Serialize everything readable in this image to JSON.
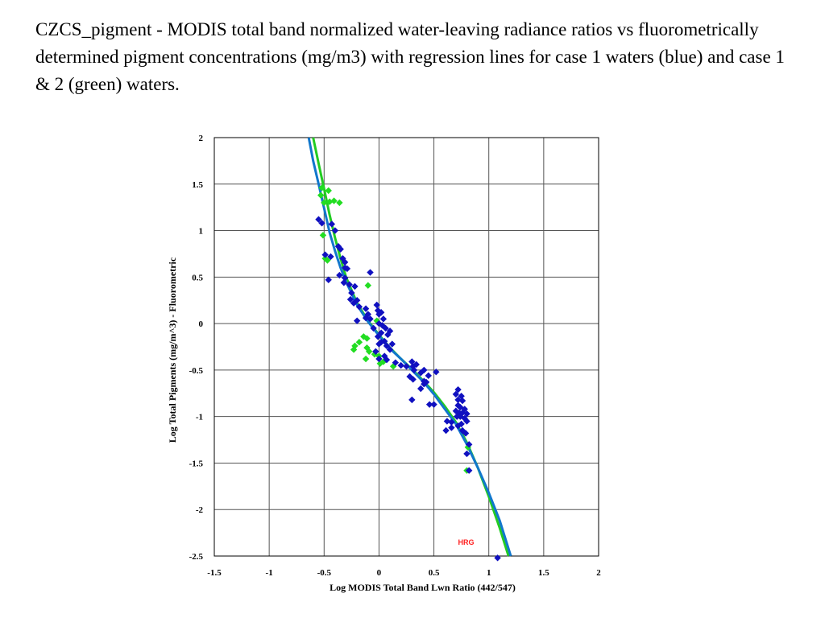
{
  "caption": "CZCS_pigment - MODIS total band normalized water-leaving radiance ratios vs fluorometrically determined pigment concentrations (mg/m3) with regression lines for case 1 waters (blue) and case 1 & 2 (green) waters.",
  "chart_data": {
    "type": "scatter",
    "xlabel": "Log MODIS Total Band Lwn Ratio (442/547)",
    "ylabel": "Log Total Pigments (mg/m^3) - Fluorometric",
    "xlim": [
      -1.5,
      2
    ],
    "ylim": [
      -2.5,
      2
    ],
    "x_ticks": [
      -1.5,
      -1,
      -0.5,
      0,
      0.5,
      1,
      1.5,
      2
    ],
    "y_ticks": [
      -2.5,
      -2,
      -1.5,
      -1,
      -0.5,
      0,
      0.5,
      1,
      1.5,
      2
    ],
    "x_tick_labels": [
      "-1.5",
      "-1",
      "-0.5",
      "0",
      "0.5",
      "1",
      "1.5",
      "2"
    ],
    "y_tick_labels": [
      "-2.5",
      "-2",
      "-1.5",
      "-1",
      "-0.5",
      "0",
      "0.5",
      "1",
      "1.5",
      "2"
    ],
    "grid": true,
    "annotation": "HRG",
    "colors": {
      "case12": "#22dd22",
      "case1": "#1010c0",
      "blue_line": "#1177cc",
      "green_line": "#22cc22"
    },
    "series_green": [
      [
        -0.52,
        1.46
      ],
      [
        -0.46,
        1.43
      ],
      [
        -0.53,
        1.38
      ],
      [
        -0.5,
        1.3
      ],
      [
        -0.45,
        1.31
      ],
      [
        -0.41,
        1.32
      ],
      [
        -0.36,
        1.3
      ],
      [
        -0.51,
        0.95
      ],
      [
        -0.49,
        0.7
      ],
      [
        -0.47,
        0.68
      ],
      [
        -0.1,
        0.41
      ],
      [
        -0.02,
        0.03
      ],
      [
        -0.14,
        -0.14
      ],
      [
        -0.11,
        -0.16
      ],
      [
        -0.18,
        -0.2
      ],
      [
        -0.22,
        -0.24
      ],
      [
        -0.23,
        -0.28
      ],
      [
        -0.11,
        -0.26
      ],
      [
        -0.09,
        -0.3
      ],
      [
        -0.12,
        -0.38
      ],
      [
        -0.04,
        -0.33
      ],
      [
        0.0,
        -0.35
      ],
      [
        0.01,
        -0.43
      ],
      [
        0.04,
        -0.41
      ],
      [
        0.13,
        -0.46
      ],
      [
        0.8,
        -1.58
      ],
      [
        0.81,
        -1.33
      ]
    ],
    "series_blue": [
      [
        -0.55,
        1.12
      ],
      [
        -0.52,
        1.08
      ],
      [
        -0.43,
        1.07
      ],
      [
        -0.4,
        1.0
      ],
      [
        -0.37,
        0.83
      ],
      [
        -0.35,
        0.8
      ],
      [
        -0.49,
        0.74
      ],
      [
        -0.44,
        0.72
      ],
      [
        -0.33,
        0.7
      ],
      [
        -0.31,
        0.66
      ],
      [
        -0.31,
        0.6
      ],
      [
        -0.29,
        0.59
      ],
      [
        -0.36,
        0.52
      ],
      [
        -0.31,
        0.49
      ],
      [
        -0.46,
        0.47
      ],
      [
        -0.32,
        0.44
      ],
      [
        -0.27,
        0.42
      ],
      [
        -0.08,
        0.55
      ],
      [
        -0.22,
        0.4
      ],
      [
        -0.25,
        0.33
      ],
      [
        -0.26,
        0.26
      ],
      [
        -0.2,
        0.25
      ],
      [
        -0.23,
        0.22
      ],
      [
        -0.18,
        0.18
      ],
      [
        -0.12,
        0.16
      ],
      [
        -0.1,
        0.1
      ],
      [
        -0.12,
        0.06
      ],
      [
        -0.08,
        0.05
      ],
      [
        -0.2,
        0.03
      ],
      [
        -0.02,
        0.2
      ],
      [
        -0.01,
        0.14
      ],
      [
        0.0,
        0.1
      ],
      [
        0.02,
        0.12
      ],
      [
        0.04,
        0.05
      ],
      [
        0.0,
        0.0
      ],
      [
        0.03,
        -0.02
      ],
      [
        -0.05,
        -0.05
      ],
      [
        0.06,
        -0.05
      ],
      [
        0.1,
        -0.08
      ],
      [
        0.02,
        -0.1
      ],
      [
        0.08,
        -0.12
      ],
      [
        -0.01,
        -0.14
      ],
      [
        0.05,
        -0.19
      ],
      [
        0.02,
        -0.2
      ],
      [
        0.0,
        -0.22
      ],
      [
        0.07,
        -0.24
      ],
      [
        0.1,
        -0.28
      ],
      [
        0.12,
        -0.22
      ],
      [
        -0.03,
        -0.3
      ],
      [
        0.05,
        -0.35
      ],
      [
        0.0,
        -0.38
      ],
      [
        0.07,
        -0.39
      ],
      [
        0.15,
        -0.42
      ],
      [
        0.2,
        -0.45
      ],
      [
        0.25,
        -0.46
      ],
      [
        0.3,
        -0.41
      ],
      [
        0.31,
        -0.46
      ],
      [
        0.34,
        -0.44
      ],
      [
        0.32,
        -0.5
      ],
      [
        0.38,
        -0.53
      ],
      [
        0.41,
        -0.5
      ],
      [
        0.45,
        -0.56
      ],
      [
        0.28,
        -0.57
      ],
      [
        0.31,
        -0.6
      ],
      [
        0.41,
        -0.62
      ],
      [
        0.43,
        -0.63
      ],
      [
        0.41,
        -0.65
      ],
      [
        0.38,
        -0.7
      ],
      [
        0.3,
        -0.82
      ],
      [
        0.52,
        -0.52
      ],
      [
        0.46,
        -0.87
      ],
      [
        0.5,
        -0.87
      ],
      [
        0.72,
        -0.71
      ],
      [
        0.7,
        -0.76
      ],
      [
        0.75,
        -0.78
      ],
      [
        0.72,
        -0.82
      ],
      [
        0.76,
        -0.83
      ],
      [
        0.72,
        -0.88
      ],
      [
        0.74,
        -0.9
      ],
      [
        0.78,
        -0.92
      ],
      [
        0.7,
        -0.94
      ],
      [
        0.73,
        -0.96
      ],
      [
        0.76,
        -0.96
      ],
      [
        0.8,
        -0.97
      ],
      [
        0.71,
        -1.0
      ],
      [
        0.74,
        -1.0
      ],
      [
        0.78,
        -1.02
      ],
      [
        0.8,
        -1.05
      ],
      [
        0.62,
        -1.05
      ],
      [
        0.66,
        -1.06
      ],
      [
        0.75,
        -1.08
      ],
      [
        0.72,
        -1.1
      ],
      [
        0.66,
        -1.12
      ],
      [
        0.76,
        -1.15
      ],
      [
        0.61,
        -1.15
      ],
      [
        0.79,
        -1.18
      ],
      [
        0.82,
        -1.3
      ],
      [
        0.8,
        -1.4
      ],
      [
        0.82,
        -1.58
      ],
      [
        1.08,
        -2.52
      ]
    ],
    "regression_blue": [
      [
        -0.64,
        2.0
      ],
      [
        -0.6,
        1.75
      ],
      [
        -0.55,
        1.5
      ],
      [
        -0.5,
        1.24
      ],
      [
        -0.45,
        0.98
      ],
      [
        -0.4,
        0.78
      ],
      [
        -0.35,
        0.6
      ],
      [
        -0.3,
        0.45
      ],
      [
        -0.2,
        0.2
      ],
      [
        -0.1,
        0.02
      ],
      [
        0.0,
        -0.13
      ],
      [
        0.1,
        -0.27
      ],
      [
        0.2,
        -0.38
      ],
      [
        0.3,
        -0.5
      ],
      [
        0.4,
        -0.62
      ],
      [
        0.5,
        -0.76
      ],
      [
        0.6,
        -0.92
      ],
      [
        0.7,
        -1.08
      ],
      [
        0.8,
        -1.3
      ],
      [
        0.9,
        -1.55
      ],
      [
        1.0,
        -1.82
      ],
      [
        1.1,
        -2.12
      ],
      [
        1.2,
        -2.5
      ]
    ],
    "regression_green": [
      [
        -0.6,
        2.0
      ],
      [
        -0.55,
        1.72
      ],
      [
        -0.5,
        1.45
      ],
      [
        -0.45,
        1.17
      ],
      [
        -0.4,
        0.92
      ],
      [
        -0.35,
        0.7
      ],
      [
        -0.3,
        0.5
      ],
      [
        -0.2,
        0.22
      ],
      [
        -0.1,
        0.03
      ],
      [
        0.0,
        -0.12
      ],
      [
        0.1,
        -0.26
      ],
      [
        0.2,
        -0.38
      ],
      [
        0.3,
        -0.49
      ],
      [
        0.4,
        -0.61
      ],
      [
        0.5,
        -0.74
      ],
      [
        0.6,
        -0.89
      ],
      [
        0.7,
        -1.06
      ],
      [
        0.8,
        -1.28
      ],
      [
        0.9,
        -1.55
      ],
      [
        1.0,
        -1.86
      ],
      [
        1.1,
        -2.2
      ],
      [
        1.18,
        -2.5
      ]
    ]
  }
}
